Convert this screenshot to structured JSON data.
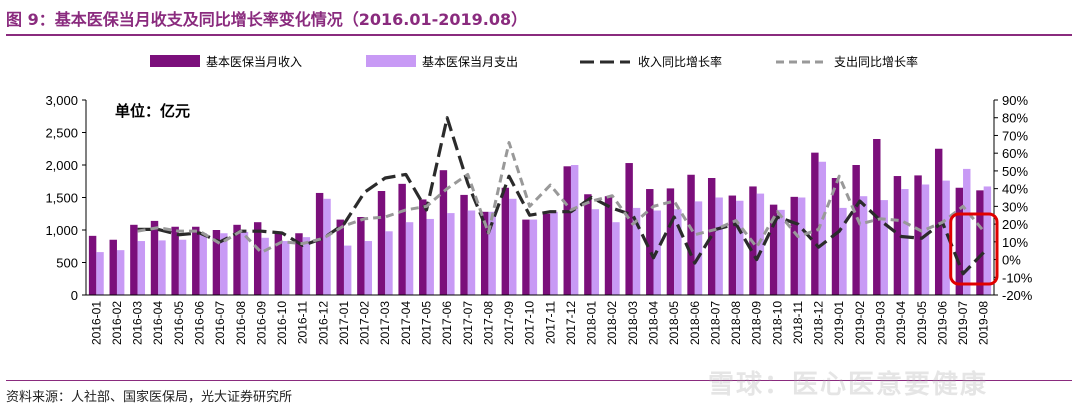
{
  "title": "图 9：基本医保当月收支及同比增长率变化情况（2016.01-2019.08）",
  "source": "资料来源：人社部、国家医保局，光大证券研究所",
  "watermark": "雪球：医心医意要健康",
  "chart_data": {
    "type": "bar",
    "unit_label": "单位：亿元",
    "categories": [
      "2016-01",
      "2016-02",
      "2016-03",
      "2016-04",
      "2016-05",
      "2016-06",
      "2016-07",
      "2016-08",
      "2016-09",
      "2016-10",
      "2016-11",
      "2016-12",
      "2017-01",
      "2017-02",
      "2017-03",
      "2017-04",
      "2017-05",
      "2017-06",
      "2017-07",
      "2017-08",
      "2017-09",
      "2017-10",
      "2017-11",
      "2017-12",
      "2018-01",
      "2018-02",
      "2018-03",
      "2018-04",
      "2018-05",
      "2018-06",
      "2018-07",
      "2018-08",
      "2018-09",
      "2018-10",
      "2018-11",
      "2018-12",
      "2019-01",
      "2019-02",
      "2019-03",
      "2019-04",
      "2019-05",
      "2019-06",
      "2019-07",
      "2019-08"
    ],
    "series": [
      {
        "name": "基本医保当月收入",
        "kind": "bar",
        "axis": "left",
        "color": "#7b0f7b",
        "values": [
          910,
          850,
          1080,
          1140,
          1050,
          1050,
          1000,
          1080,
          1120,
          970,
          950,
          1570,
          1160,
          1200,
          1600,
          1710,
          1470,
          1920,
          1540,
          1280,
          1650,
          1160,
          1250,
          1980,
          1550,
          1520,
          2030,
          1630,
          1640,
          1850,
          1800,
          1530,
          1670,
          1390,
          1510,
          2190,
          1800,
          2000,
          2400,
          1830,
          1840,
          2250,
          1650,
          1610
        ]
      },
      {
        "name": "基本医保当月支出",
        "kind": "bar",
        "axis": "right_side",
        "color": "#c89af5",
        "values": [
          660,
          690,
          830,
          840,
          850,
          950,
          950,
          970,
          880,
          830,
          890,
          1480,
          760,
          830,
          980,
          1120,
          1170,
          1260,
          1300,
          1280,
          1480,
          1160,
          1280,
          2000,
          1320,
          1120,
          1340,
          1300,
          1320,
          1440,
          1500,
          1450,
          1560,
          1310,
          1500,
          2050,
          1340,
          1520,
          1460,
          1630,
          1700,
          1760,
          1940,
          1670
        ]
      },
      {
        "name": "收入同比增长率",
        "kind": "line",
        "axis": "right",
        "color": "#2b2b2b",
        "dash": "solid-dash",
        "values": [
          null,
          null,
          17,
          17,
          14,
          15,
          10,
          16,
          16,
          15,
          8,
          12,
          20,
          38,
          46,
          48,
          28,
          80,
          43,
          15,
          47,
          25,
          27,
          27,
          35,
          29,
          25,
          1,
          24,
          -2,
          17,
          20,
          0,
          24,
          20,
          7,
          16,
          33,
          22,
          13,
          12,
          21,
          -8,
          4
        ]
      },
      {
        "name": "支出同比增长率",
        "kind": "line",
        "axis": "right",
        "color": "#999999",
        "dash": "dash",
        "values": [
          null,
          null,
          16,
          18,
          16,
          16,
          9,
          16,
          4,
          10,
          9,
          12,
          19,
          23,
          24,
          28,
          30,
          40,
          48,
          15,
          66,
          30,
          42,
          28,
          33,
          36,
          20,
          30,
          33,
          14,
          17,
          22,
          7,
          27,
          13,
          17,
          47,
          20,
          23,
          22,
          16,
          21,
          30,
          16
        ]
      }
    ],
    "y_left": {
      "min": 0,
      "max": 3000,
      "ticks": [
        "0",
        "500",
        "1,000",
        "1,500",
        "2,000",
        "2,500",
        "3,000"
      ]
    },
    "y_right": {
      "min": -20,
      "max": 90,
      "ticks": [
        "-20%",
        "-10%",
        "0%",
        "10%",
        "20%",
        "30%",
        "40%",
        "50%",
        "60%",
        "70%",
        "80%",
        "90%"
      ]
    },
    "highlight": {
      "from": "2019-07",
      "to": "2019-08",
      "color": "#e00000"
    },
    "legend_position": "top"
  }
}
